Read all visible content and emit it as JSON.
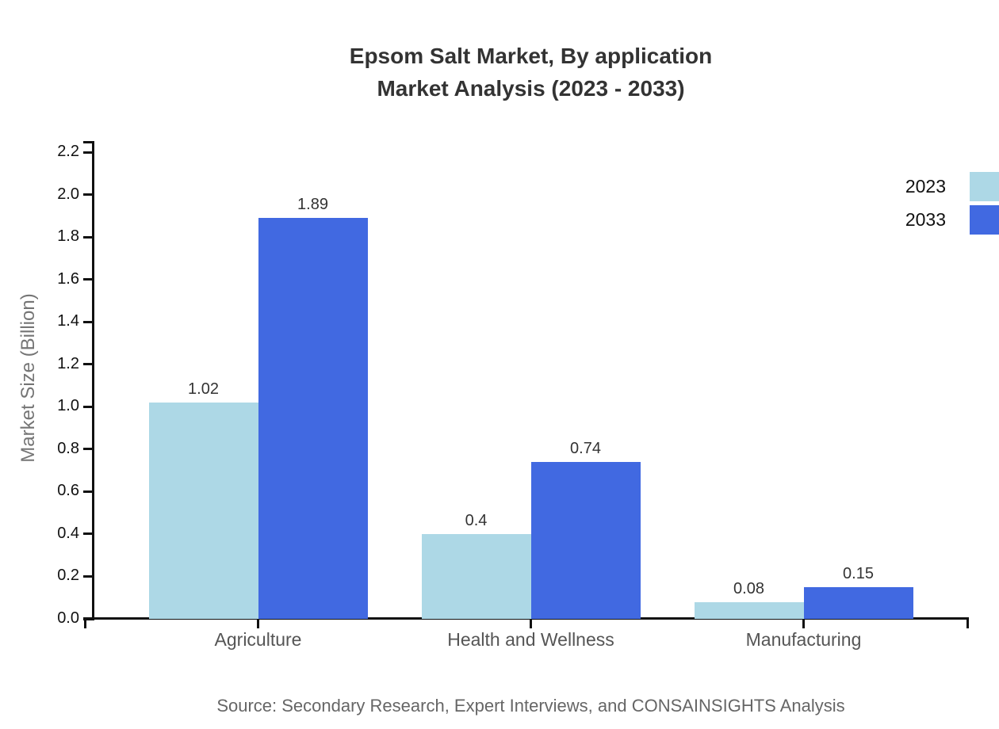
{
  "title": {
    "line1": "Epsom Salt Market, By application",
    "line2": "Market Analysis (2023 - 2033)"
  },
  "source": "Source: Secondary Research, Expert Interviews, and CONSAINSIGHTS Analysis",
  "chart_data": {
    "type": "bar",
    "title": "Epsom Salt Market, By application Market Analysis (2023 - 2033)",
    "categories": [
      "Agriculture",
      "Health and Wellness",
      "Manufacturing"
    ],
    "series": [
      {
        "name": "2023",
        "color": "#ADD8E6",
        "values": [
          1.02,
          0.4,
          0.08
        ]
      },
      {
        "name": "2033",
        "color": "#4169E1",
        "values": [
          1.89,
          0.74,
          0.15
        ]
      }
    ],
    "xlabel": "",
    "ylabel": "Market Size (Billion)",
    "ylim": [
      0,
      2.2
    ],
    "ytick_step": 0.2,
    "grid": false,
    "legend_position": "top-right",
    "bar_value_labels": true
  }
}
